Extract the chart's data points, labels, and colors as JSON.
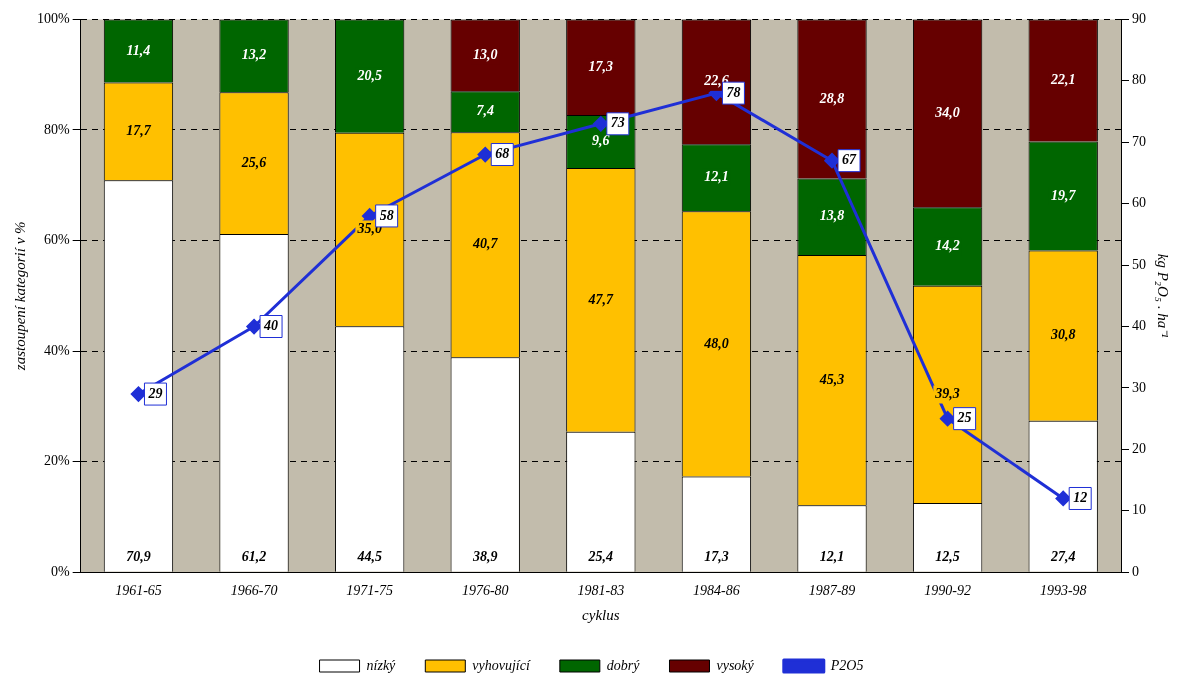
{
  "chart_data": {
    "type": "bar",
    "stacked": true,
    "xlabel": "cyklus",
    "ylabel": "zastoupení kategorií v %",
    "y2label": "kg P₂O₅ . ha⁻¹",
    "categories": [
      "1961-65",
      "1966-70",
      "1971-75",
      "1976-80",
      "1981-83",
      "1984-86",
      "1987-89",
      "1990-92",
      "1993-98"
    ],
    "ylim": [
      0,
      100
    ],
    "yticks": [
      {
        "value": 0,
        "label": "0%"
      },
      {
        "value": 20,
        "label": "20%"
      },
      {
        "value": 40,
        "label": "40%"
      },
      {
        "value": 60,
        "label": "60%"
      },
      {
        "value": 80,
        "label": "80%"
      },
      {
        "value": 100,
        "label": "100%"
      }
    ],
    "y2lim": [
      0,
      90
    ],
    "y2ticks": [
      0,
      10,
      20,
      30,
      40,
      50,
      60,
      70,
      80,
      90
    ],
    "grid": "y",
    "legend": "bottom",
    "series": [
      {
        "name": "nízký",
        "color": "#ffffff",
        "values": [
          70.9,
          61.2,
          44.5,
          38.9,
          25.4,
          17.3,
          12.1,
          12.5,
          27.4
        ],
        "value_labels": [
          "70,9",
          "61,2",
          "44,5",
          "38,9",
          "25,4",
          "17,3",
          "12,1",
          "12,5",
          "27,4"
        ]
      },
      {
        "name": "vyhovující",
        "color": "#ffc000",
        "values": [
          17.7,
          25.6,
          35.0,
          40.7,
          47.7,
          48.0,
          45.3,
          39.3,
          30.8
        ],
        "value_labels": [
          "17,7",
          "25,6",
          "35,0",
          "40,7",
          "47,7",
          "48,0",
          "45,3",
          "39,3",
          "30,8"
        ]
      },
      {
        "name": "dobrý",
        "color": "#006600",
        "values": [
          11.4,
          13.2,
          20.5,
          7.4,
          9.6,
          12.1,
          13.8,
          14.2,
          19.7
        ],
        "value_labels": [
          "11,4",
          "13,2",
          "20,5",
          "7,4",
          "9,6",
          "12,1",
          "13,8",
          "14,2",
          "19,7"
        ]
      },
      {
        "name": "vysoký",
        "color": "#660000",
        "values": [
          null,
          null,
          null,
          13.0,
          17.3,
          22.6,
          28.8,
          34.0,
          22.1
        ],
        "value_labels": [
          null,
          null,
          null,
          "13,0",
          "17,3",
          "22,6",
          "28,8",
          "34,0",
          "22,1"
        ]
      },
      {
        "name": "P2O5",
        "type": "line",
        "axis": "y2",
        "color": "#1f2fd6",
        "marker": "diamond",
        "values": [
          29,
          40,
          58,
          68,
          73,
          78,
          67,
          25,
          12
        ],
        "value_labels": [
          "29",
          "40",
          "58",
          "68",
          "73",
          "78",
          "67",
          "25",
          "12"
        ]
      }
    ]
  }
}
